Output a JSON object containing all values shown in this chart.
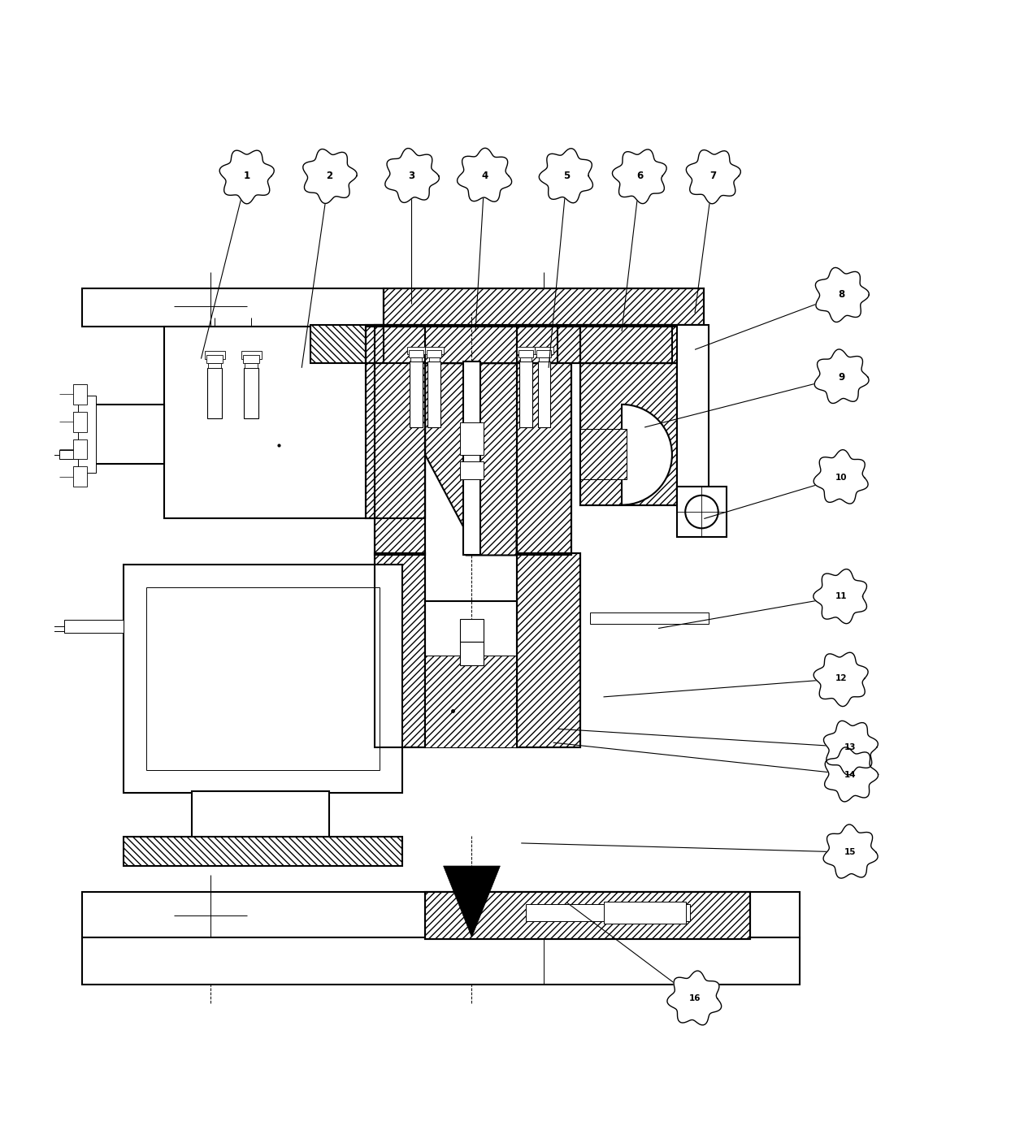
{
  "bg_color": "#ffffff",
  "line_color": "#000000",
  "lw_main": 1.5,
  "lw_thin": 0.7,
  "lw_thick": 2.2,
  "callout_labels": [
    "1",
    "2",
    "3",
    "4",
    "5",
    "6",
    "7",
    "8",
    "9",
    "10",
    "11",
    "12",
    "13",
    "14",
    "15",
    "16"
  ],
  "callout_positions_x": [
    2.6,
    3.5,
    4.4,
    5.2,
    6.1,
    6.9,
    7.7,
    9.1,
    9.1,
    9.1,
    9.1,
    9.1,
    9.2,
    9.2,
    9.2,
    7.5
  ],
  "callout_positions_y": [
    12.6,
    12.6,
    12.6,
    12.6,
    12.6,
    12.6,
    12.6,
    11.3,
    10.4,
    9.3,
    8.0,
    7.1,
    6.35,
    6.05,
    5.2,
    3.6
  ],
  "callout_targets_x": [
    2.1,
    3.2,
    4.4,
    5.1,
    5.9,
    6.7,
    7.5,
    7.5,
    6.95,
    7.6,
    7.1,
    6.5,
    6.0,
    5.95,
    5.6,
    6.1
  ],
  "callout_targets_y": [
    10.6,
    10.5,
    11.2,
    10.9,
    10.5,
    10.9,
    11.1,
    10.7,
    9.85,
    8.85,
    7.65,
    6.9,
    6.55,
    6.4,
    5.3,
    4.65
  ]
}
